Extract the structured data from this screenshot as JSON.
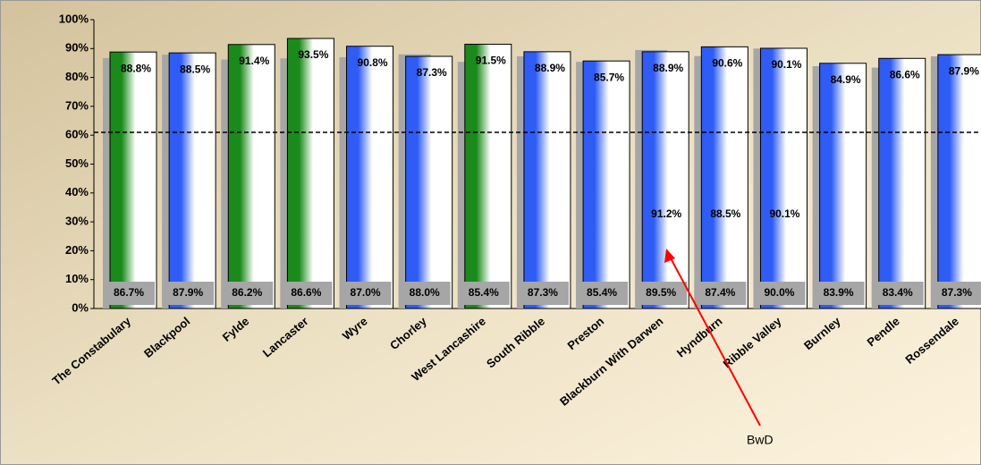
{
  "chart_data": {
    "type": "bar",
    "categories": [
      "The Constabulary",
      "Blackpool",
      "Fylde",
      "Lancaster",
      "Wyre",
      "Chorley",
      "West Lancashire",
      "South Ribble",
      "Preston",
      "Blackburn With Darwen",
      "Hyndburn",
      "Ribble Valley",
      "Burnley",
      "Pendle",
      "Rossendale"
    ],
    "series": [
      {
        "color": "#a6a6a6",
        "values": [
          86.7,
          87.9,
          86.2,
          86.6,
          87.0,
          88.0,
          85.4,
          87.3,
          85.4,
          89.5,
          87.4,
          90.0,
          83.9,
          83.4,
          87.3
        ],
        "value_labels": [
          "86.7%",
          "87.9%",
          "86.2%",
          "86.6%",
          "87.0%",
          "88.0%",
          "85.4%",
          "87.3%",
          "85.4%",
          "89.5%",
          "87.4%",
          "90.0%",
          "83.9%",
          "83.4%",
          "87.3%"
        ]
      },
      {
        "colors": [
          "#1a8a1a",
          "#2e5cf5",
          "#1a8a1a",
          "#1a8a1a",
          "#2e5cf5",
          "#2e5cf5",
          "#1a8a1a",
          "#2e5cf5",
          "#2e5cf5",
          "#2e5cf5",
          "#2e5cf5",
          "#2e5cf5",
          "#2e5cf5",
          "#2e5cf5",
          "#2e5cf5"
        ],
        "values": [
          88.8,
          88.5,
          91.4,
          93.5,
          90.8,
          87.3,
          91.5,
          88.9,
          85.7,
          88.9,
          90.6,
          90.1,
          84.9,
          86.6,
          87.9
        ],
        "value_labels": [
          "88.8%",
          "88.5%",
          "91.4%",
          "93.5%",
          "90.8%",
          "87.3%",
          "91.5%",
          "88.9%",
          "85.7%",
          "88.9%",
          "90.6%",
          "90.1%",
          "84.9%",
          "86.6%",
          "87.9%"
        ]
      },
      {
        "values": [
          null,
          null,
          null,
          null,
          null,
          null,
          null,
          null,
          null,
          91.2,
          88.5,
          90.1,
          null,
          null,
          null
        ],
        "value_labels": [
          null,
          null,
          null,
          null,
          null,
          null,
          null,
          null,
          null,
          "91.2%",
          "88.5%",
          "90.1%",
          null,
          null,
          null
        ]
      }
    ],
    "ylim": [
      0,
      100
    ],
    "yticks": [
      {
        "value": 0,
        "label": "0%"
      },
      {
        "value": 10,
        "label": "10%"
      },
      {
        "value": 20,
        "label": "20%"
      },
      {
        "value": 30,
        "label": "30%"
      },
      {
        "value": 40,
        "label": "40%"
      },
      {
        "value": 50,
        "label": "50%"
      },
      {
        "value": 60,
        "label": "60%"
      },
      {
        "value": 70,
        "label": "70%"
      },
      {
        "value": 80,
        "label": "80%"
      },
      {
        "value": 90,
        "label": "90%"
      },
      {
        "value": 100,
        "label": "100%"
      }
    ],
    "reference_line": 61,
    "annotation": "BwD"
  }
}
